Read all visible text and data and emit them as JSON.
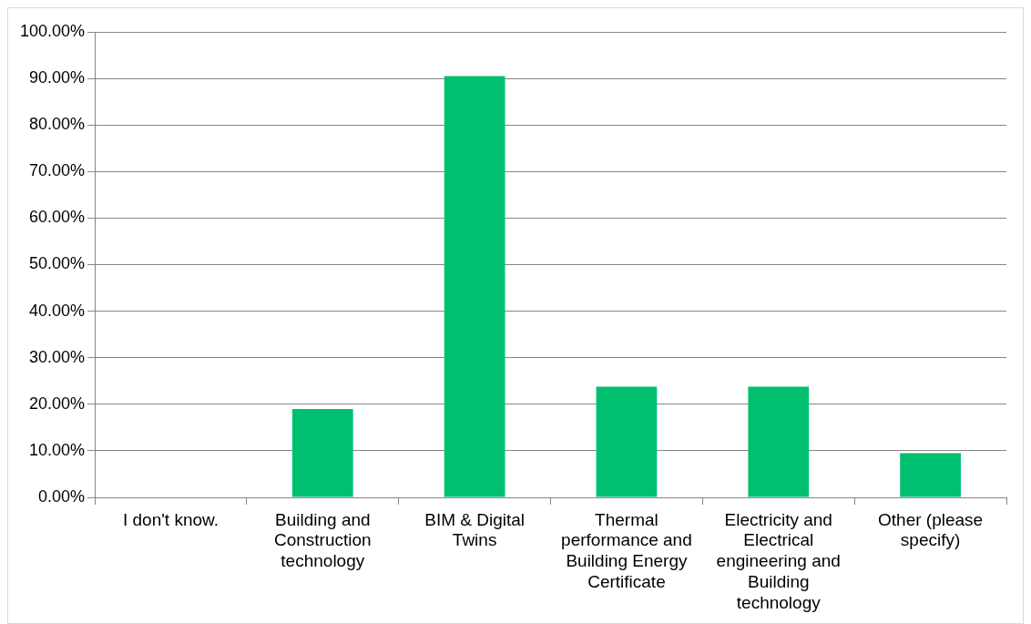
{
  "chart_data": {
    "type": "bar",
    "categories": [
      "I don't know.",
      "Building and Construction technology",
      "BIM & Digital Twins",
      "Thermal performance and Building Energy Certificate",
      "Electricity and Electrical engineering and Building technology",
      "Other (please specify)"
    ],
    "values": [
      0,
      19,
      90.5,
      23.8,
      23.8,
      9.5
    ],
    "color": "#00bf6f",
    "ylim": [
      0,
      100
    ],
    "yticks": [
      {
        "value": 0,
        "label": "0.00%"
      },
      {
        "value": 10,
        "label": "10.00%"
      },
      {
        "value": 20,
        "label": "20.00%"
      },
      {
        "value": 30,
        "label": "30.00%"
      },
      {
        "value": 40,
        "label": "40.00%"
      },
      {
        "value": 50,
        "label": "50.00%"
      },
      {
        "value": 60,
        "label": "60.00%"
      },
      {
        "value": 70,
        "label": "70.00%"
      },
      {
        "value": 80,
        "label": "80.00%"
      },
      {
        "value": 90,
        "label": "90.00%"
      },
      {
        "value": 100,
        "label": "100.00%"
      }
    ],
    "grid": "y",
    "legend": false
  }
}
